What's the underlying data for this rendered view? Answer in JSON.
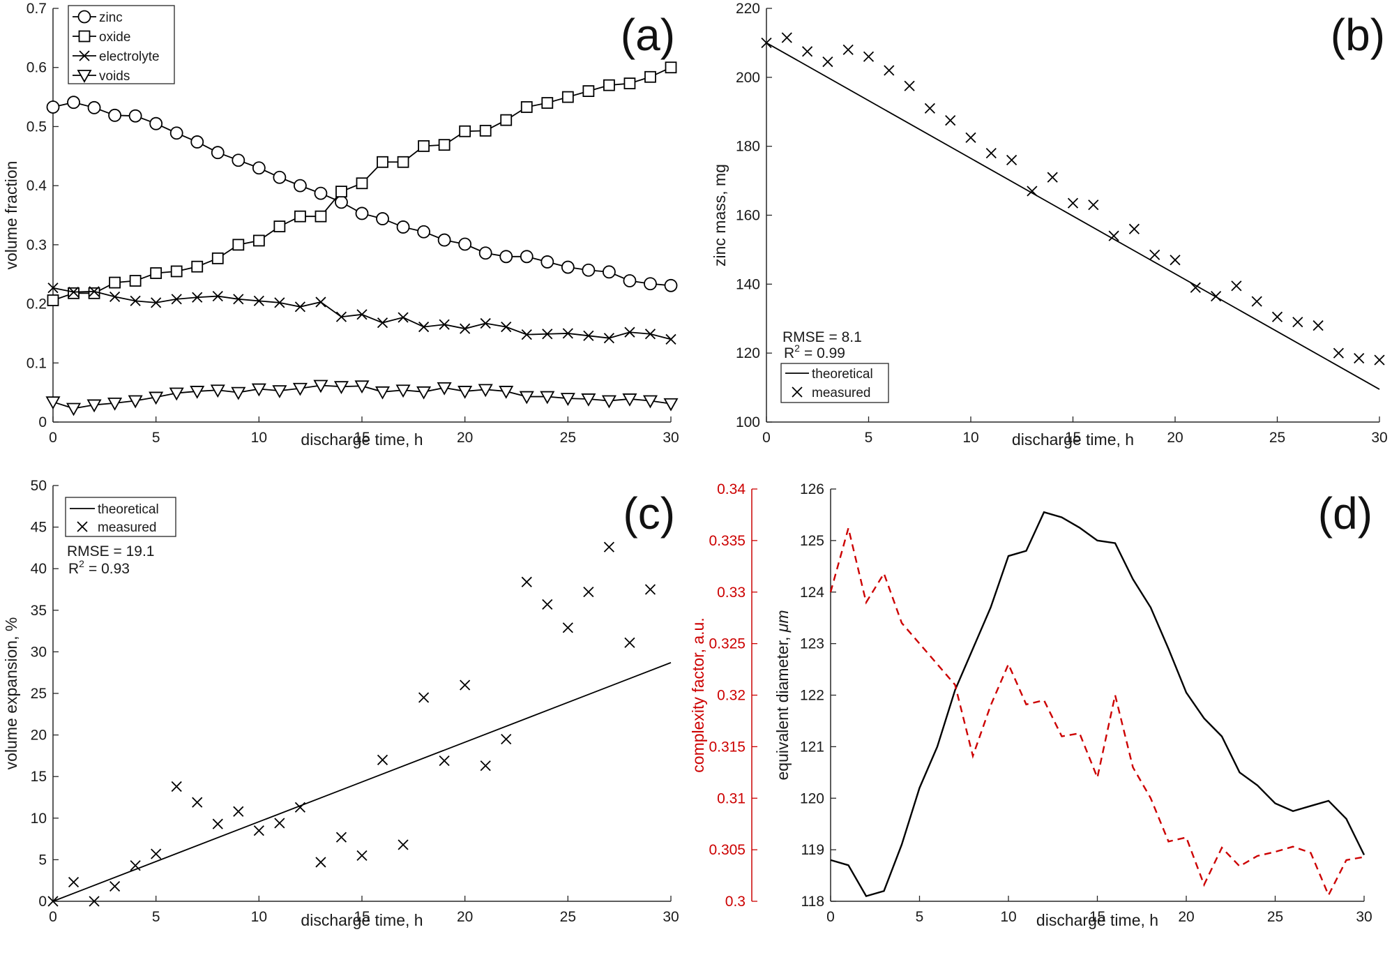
{
  "chart_data": [
    {
      "panel": "(a)",
      "type": "line",
      "xlabel": "discharge time, h",
      "ylabel": "volume fraction",
      "xlim": [
        0,
        30
      ],
      "ylim": [
        0,
        0.7
      ],
      "xticks": [
        0,
        5,
        10,
        15,
        20,
        25,
        30
      ],
      "yticks": [
        0,
        0.1,
        0.2,
        0.3,
        0.4,
        0.5,
        0.6,
        0.7
      ],
      "ytick_labels": [
        "0",
        "0.1",
        "0.2",
        "0.3",
        "0.4",
        "0.5",
        "0.6",
        "0.7"
      ],
      "legend_position": "top-left",
      "x": [
        0,
        1,
        2,
        3,
        4,
        5,
        6,
        7,
        8,
        9,
        10,
        11,
        12,
        13,
        14,
        15,
        16,
        17,
        18,
        19,
        20,
        21,
        22,
        23,
        24,
        25,
        26,
        27,
        28,
        29,
        30
      ],
      "series": [
        {
          "name": "zinc",
          "marker": "circle",
          "values": [
            0.533,
            0.541,
            0.532,
            0.519,
            0.518,
            0.505,
            0.489,
            0.474,
            0.456,
            0.443,
            0.43,
            0.414,
            0.4,
            0.387,
            0.372,
            0.353,
            0.344,
            0.33,
            0.322,
            0.308,
            0.301,
            0.286,
            0.28,
            0.28,
            0.271,
            0.262,
            0.257,
            0.254,
            0.239,
            0.234,
            0.231
          ]
        },
        {
          "name": "oxide",
          "marker": "square",
          "values": [
            0.206,
            0.218,
            0.218,
            0.236,
            0.239,
            0.252,
            0.255,
            0.263,
            0.277,
            0.3,
            0.307,
            0.331,
            0.348,
            0.348,
            0.39,
            0.404,
            0.44,
            0.44,
            0.467,
            0.469,
            0.492,
            0.493,
            0.511,
            0.533,
            0.54,
            0.55,
            0.56,
            0.57,
            0.573,
            0.584,
            0.6
          ]
        },
        {
          "name": "electrolyte",
          "marker": "x",
          "values": [
            0.227,
            0.22,
            0.221,
            0.212,
            0.205,
            0.202,
            0.208,
            0.211,
            0.213,
            0.208,
            0.205,
            0.202,
            0.195,
            0.203,
            0.178,
            0.182,
            0.168,
            0.177,
            0.161,
            0.165,
            0.158,
            0.167,
            0.161,
            0.148,
            0.149,
            0.15,
            0.146,
            0.142,
            0.152,
            0.149,
            0.14
          ]
        },
        {
          "name": "voids",
          "marker": "triangle-down",
          "values": [
            0.034,
            0.023,
            0.029,
            0.032,
            0.036,
            0.042,
            0.049,
            0.052,
            0.054,
            0.05,
            0.056,
            0.053,
            0.057,
            0.062,
            0.06,
            0.061,
            0.051,
            0.054,
            0.051,
            0.058,
            0.052,
            0.055,
            0.052,
            0.043,
            0.043,
            0.04,
            0.039,
            0.036,
            0.039,
            0.036,
            0.031
          ]
        }
      ]
    },
    {
      "panel": "(b)",
      "type": "scatter+line",
      "xlabel": "discharge time, h",
      "ylabel": "zinc mass, mg",
      "xlim": [
        0,
        30
      ],
      "ylim": [
        100,
        220
      ],
      "xticks": [
        0,
        5,
        10,
        15,
        20,
        25,
        30
      ],
      "yticks": [
        100,
        120,
        140,
        160,
        180,
        200,
        220
      ],
      "legend_position": "bottom-left",
      "stats": {
        "rmse_label": "RMSE = 8.1",
        "r2_prefix": "R",
        "r2_sup": "2",
        "r2_value": "=  0.99"
      },
      "theoretical": {
        "name": "theoretical",
        "x": [
          0,
          30
        ],
        "values": [
          210,
          109.5
        ]
      },
      "measured": {
        "name": "measured",
        "x": [
          0,
          1,
          2,
          3,
          4,
          5,
          6,
          7,
          8,
          9,
          10,
          11,
          12,
          13,
          14,
          15,
          16,
          17,
          18,
          19,
          20,
          21,
          22,
          23,
          24,
          25,
          26,
          27,
          28,
          29,
          30
        ],
        "values": [
          210,
          211.5,
          207.5,
          204.5,
          208,
          206,
          202,
          197.5,
          191,
          187.5,
          182.5,
          178,
          176,
          167,
          171,
          163.5,
          163,
          154,
          156,
          148.5,
          147,
          139,
          136.5,
          139.5,
          135,
          130.5,
          129,
          128,
          120,
          118.5,
          118
        ]
      }
    },
    {
      "panel": "(c)",
      "type": "scatter+line",
      "xlabel": "discharge time, h",
      "ylabel": "volume expansion, %",
      "xlim": [
        0,
        30
      ],
      "ylim": [
        0,
        50
      ],
      "xticks": [
        0,
        5,
        10,
        15,
        20,
        25,
        30
      ],
      "yticks": [
        0,
        5,
        10,
        15,
        20,
        25,
        30,
        35,
        40,
        45,
        50
      ],
      "legend_position": "top-left",
      "stats": {
        "rmse_label": "RMSE = 19.1",
        "r2_prefix": "R",
        "r2_sup": "2",
        "r2_value": "=  0.93"
      },
      "theoretical": {
        "name": "theoretical",
        "x": [
          0,
          30
        ],
        "values": [
          0,
          28.7
        ]
      },
      "measured": {
        "name": "measured",
        "x": [
          0,
          1,
          2,
          3,
          4,
          5,
          6,
          7,
          8,
          9,
          10,
          11,
          12,
          13,
          14,
          15,
          16,
          17,
          18,
          19,
          20,
          21,
          22,
          23,
          24,
          25,
          26,
          27,
          28,
          29
        ],
        "values": [
          0,
          2.3,
          0,
          1.8,
          4.3,
          5.7,
          13.8,
          11.9,
          9.3,
          10.8,
          8.5,
          9.4,
          11.3,
          4.7,
          7.7,
          5.5,
          17,
          6.8,
          24.5,
          16.9,
          26,
          16.3,
          19.5,
          38.4,
          35.7,
          32.9,
          37.2,
          42.6,
          31.1,
          37.5
        ]
      }
    },
    {
      "panel": "(d)",
      "type": "line",
      "xlabel": "discharge time, h",
      "xlim": [
        0,
        30
      ],
      "xticks": [
        0,
        5,
        10,
        15,
        20,
        25,
        30
      ],
      "right_axis": {
        "label_main": "equivalent diameter, ",
        "label_unit": "μm",
        "ylim": [
          118,
          126
        ],
        "yticks": [
          118,
          119,
          120,
          121,
          122,
          123,
          124,
          125,
          126
        ]
      },
      "left_axis": {
        "label": "complexity factor, a.u.",
        "ylim": [
          0.3,
          0.34
        ],
        "color": "#cc0000",
        "yticks": [
          0.3,
          0.305,
          0.31,
          0.315,
          0.32,
          0.325,
          0.33,
          0.335,
          0.34
        ],
        "ytick_labels": [
          "0.3",
          "0.305",
          "0.31",
          "0.315",
          "0.32",
          "0.325",
          "0.33",
          "0.335",
          "0.34"
        ]
      },
      "x": [
        0,
        1,
        2,
        3,
        4,
        5,
        6,
        7,
        8,
        9,
        10,
        11,
        12,
        13,
        14,
        15,
        16,
        17,
        18,
        19,
        20,
        21,
        22,
        23,
        24,
        25,
        26,
        27,
        28,
        29,
        30
      ],
      "series": [
        {
          "name": "equivalent diameter",
          "axis": "right",
          "color": "#000000",
          "style": "solid",
          "values": [
            118.8,
            118.7,
            118.1,
            118.2,
            119.1,
            120.2,
            121.0,
            122.1,
            122.9,
            123.7,
            124.7,
            124.8,
            125.55,
            125.45,
            125.25,
            125.0,
            124.95,
            124.25,
            123.7,
            122.9,
            122.05,
            121.55,
            121.2,
            120.5,
            120.25,
            119.9,
            119.75,
            119.85,
            119.95,
            119.6,
            118.9
          ]
        },
        {
          "name": "complexity factor",
          "axis": "left",
          "color": "#cc0000",
          "style": "dashed",
          "values": [
            0.33,
            0.3362,
            0.329,
            0.3318,
            0.327,
            0.325,
            0.323,
            0.321,
            0.3141,
            0.319,
            0.323,
            0.3191,
            0.3195,
            0.316,
            0.3163,
            0.312,
            0.32,
            0.313,
            0.31,
            0.3058,
            0.3062,
            0.3016,
            0.3052,
            0.3034,
            0.3044,
            0.3048,
            0.3053,
            0.3047,
            0.3006,
            0.304,
            0.3043
          ]
        }
      ]
    }
  ]
}
